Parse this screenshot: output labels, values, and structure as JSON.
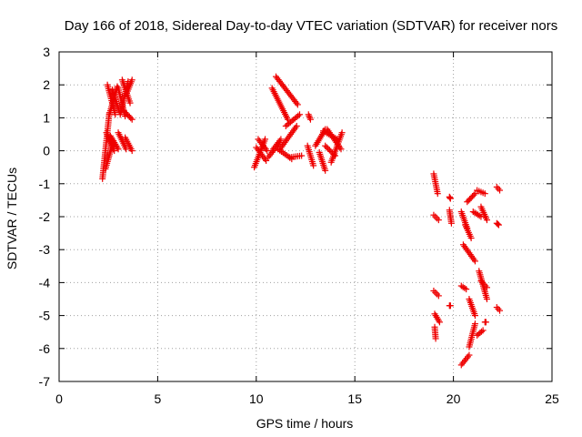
{
  "chart_data": {
    "type": "scatter",
    "title": "Day 166 of 2018, Sidereal Day-to-day VTEC variation (SDTVAR) for receiver nors",
    "xlabel": "GPS time / hours",
    "ylabel": "SDTVAR / TECUs",
    "xlim": [
      0,
      25
    ],
    "ylim": [
      -7,
      3
    ],
    "xticks": [
      0,
      5,
      10,
      15,
      20,
      25
    ],
    "yticks": [
      -7,
      -6,
      -5,
      -4,
      -3,
      -2,
      -1,
      0,
      1,
      2,
      3
    ],
    "grid": true,
    "marker": "+",
    "color": "#ee0000",
    "series": [
      {
        "name": "SDTVAR",
        "tracks": [
          {
            "x0": 2.2,
            "x1": 2.55,
            "y0": -0.85,
            "y1": 1.15
          },
          {
            "x0": 2.35,
            "x1": 2.75,
            "y0": -0.55,
            "y1": 0.3
          },
          {
            "x0": 2.4,
            "x1": 2.8,
            "y0": 0.55,
            "y1": 0.0
          },
          {
            "x0": 2.45,
            "x1": 2.85,
            "y0": 2.0,
            "y1": 1.1
          },
          {
            "x0": 2.55,
            "x1": 2.95,
            "y0": 1.1,
            "y1": 1.95
          },
          {
            "x0": 2.6,
            "x1": 3.0,
            "y0": 0.45,
            "y1": 0.05
          },
          {
            "x0": 2.7,
            "x1": 3.05,
            "y0": 1.85,
            "y1": 1.2
          },
          {
            "x0": 3.0,
            "x1": 3.35,
            "y0": 1.9,
            "y1": 1.05
          },
          {
            "x0": 3.0,
            "x1": 3.4,
            "y0": 0.55,
            "y1": 0.05
          },
          {
            "x0": 3.1,
            "x1": 3.5,
            "y0": 1.1,
            "y1": 2.1
          },
          {
            "x0": 3.2,
            "x1": 3.6,
            "y0": 2.15,
            "y1": 1.45
          },
          {
            "x0": 3.3,
            "x1": 3.7,
            "y0": 1.2,
            "y1": 0.95
          },
          {
            "x0": 3.35,
            "x1": 3.7,
            "y0": 0.4,
            "y1": 0.0
          },
          {
            "x0": 3.4,
            "x1": 3.7,
            "y0": 1.7,
            "y1": 2.15
          },
          {
            "x0": 9.9,
            "x1": 10.45,
            "y0": -0.5,
            "y1": 0.35
          },
          {
            "x0": 10.0,
            "x1": 10.5,
            "y0": 0.1,
            "y1": -0.3
          },
          {
            "x0": 10.1,
            "x1": 10.55,
            "y0": 0.35,
            "y1": 0.0
          },
          {
            "x0": 10.6,
            "x1": 11.2,
            "y0": -0.2,
            "y1": 0.25
          },
          {
            "x0": 10.8,
            "x1": 11.25,
            "y0": 0.0,
            "y1": 0.35
          },
          {
            "x0": 10.8,
            "x1": 11.6,
            "y0": 1.9,
            "y1": 0.95
          },
          {
            "x0": 11.0,
            "x1": 12.1,
            "y0": 2.25,
            "y1": 1.4
          },
          {
            "x0": 11.1,
            "x1": 11.8,
            "y0": 0.05,
            "y1": -0.25
          },
          {
            "x0": 11.2,
            "x1": 12.05,
            "y0": 0.05,
            "y1": 0.75
          },
          {
            "x0": 11.5,
            "x1": 12.2,
            "y0": 0.75,
            "y1": 1.1
          },
          {
            "x0": 11.7,
            "x1": 12.3,
            "y0": -0.2,
            "y1": -0.15
          },
          {
            "x0": 12.6,
            "x1": 12.9,
            "y0": 0.15,
            "y1": -0.45
          },
          {
            "x0": 12.65,
            "x1": 12.75,
            "y0": 1.1,
            "y1": 0.95
          },
          {
            "x0": 13.0,
            "x1": 13.5,
            "y0": 0.15,
            "y1": 0.65
          },
          {
            "x0": 13.2,
            "x1": 13.5,
            "y0": -0.05,
            "y1": -0.6
          },
          {
            "x0": 13.4,
            "x1": 14.1,
            "y0": 0.6,
            "y1": 0.35
          },
          {
            "x0": 13.5,
            "x1": 14.0,
            "y0": 0.15,
            "y1": -0.15
          },
          {
            "x0": 13.6,
            "x1": 14.3,
            "y0": 0.65,
            "y1": 0.05
          },
          {
            "x0": 13.8,
            "x1": 14.35,
            "y0": -0.35,
            "y1": 0.55
          },
          {
            "x0": 19.0,
            "x1": 19.2,
            "y0": -0.7,
            "y1": -1.3
          },
          {
            "x0": 19.0,
            "x1": 19.25,
            "y0": -1.95,
            "y1": -2.1
          },
          {
            "x0": 19.0,
            "x1": 19.25,
            "y0": -4.25,
            "y1": -4.4
          },
          {
            "x0": 19.05,
            "x1": 19.3,
            "y0": -4.95,
            "y1": -5.2
          },
          {
            "x0": 19.05,
            "x1": 19.1,
            "y0": -5.35,
            "y1": -5.7
          },
          {
            "x0": 19.8,
            "x1": 19.85,
            "y0": -1.4,
            "y1": -1.45
          },
          {
            "x0": 19.8,
            "x1": 19.9,
            "y0": -1.8,
            "y1": -2.2
          },
          {
            "x0": 19.8,
            "x1": 19.85,
            "y0": -4.7,
            "y1": -4.7
          },
          {
            "x0": 20.4,
            "x1": 20.7,
            "y0": -1.85,
            "y1": -2.35
          },
          {
            "x0": 20.4,
            "x1": 20.65,
            "y0": -4.1,
            "y1": -4.2
          },
          {
            "x0": 20.4,
            "x1": 20.8,
            "y0": -6.5,
            "y1": -6.2
          },
          {
            "x0": 20.5,
            "x1": 21.1,
            "y0": -2.85,
            "y1": -3.35
          },
          {
            "x0": 20.6,
            "x1": 20.9,
            "y0": -2.25,
            "y1": -2.65
          },
          {
            "x0": 20.7,
            "x1": 21.1,
            "y0": -1.55,
            "y1": -1.3
          },
          {
            "x0": 20.8,
            "x1": 21.1,
            "y0": -4.5,
            "y1": -5.0
          },
          {
            "x0": 20.8,
            "x1": 21.1,
            "y0": -5.95,
            "y1": -5.25
          },
          {
            "x0": 21.0,
            "x1": 21.4,
            "y0": -1.85,
            "y1": -2.0
          },
          {
            "x0": 21.2,
            "x1": 21.6,
            "y0": -1.2,
            "y1": -1.3
          },
          {
            "x0": 21.2,
            "x1": 21.5,
            "y0": -5.6,
            "y1": -5.45
          },
          {
            "x0": 21.3,
            "x1": 21.7,
            "y0": -3.65,
            "y1": -4.5
          },
          {
            "x0": 21.4,
            "x1": 21.7,
            "y0": -1.7,
            "y1": -2.1
          },
          {
            "x0": 21.4,
            "x1": 21.7,
            "y0": -3.95,
            "y1": -4.15
          },
          {
            "x0": 21.6,
            "x1": 21.65,
            "y0": -5.2,
            "y1": -5.2
          },
          {
            "x0": 22.2,
            "x1": 22.35,
            "y0": -1.1,
            "y1": -1.2
          },
          {
            "x0": 22.2,
            "x1": 22.3,
            "y0": -2.2,
            "y1": -2.25
          },
          {
            "x0": 22.2,
            "x1": 22.35,
            "y0": -4.75,
            "y1": -4.85
          }
        ]
      }
    ]
  }
}
